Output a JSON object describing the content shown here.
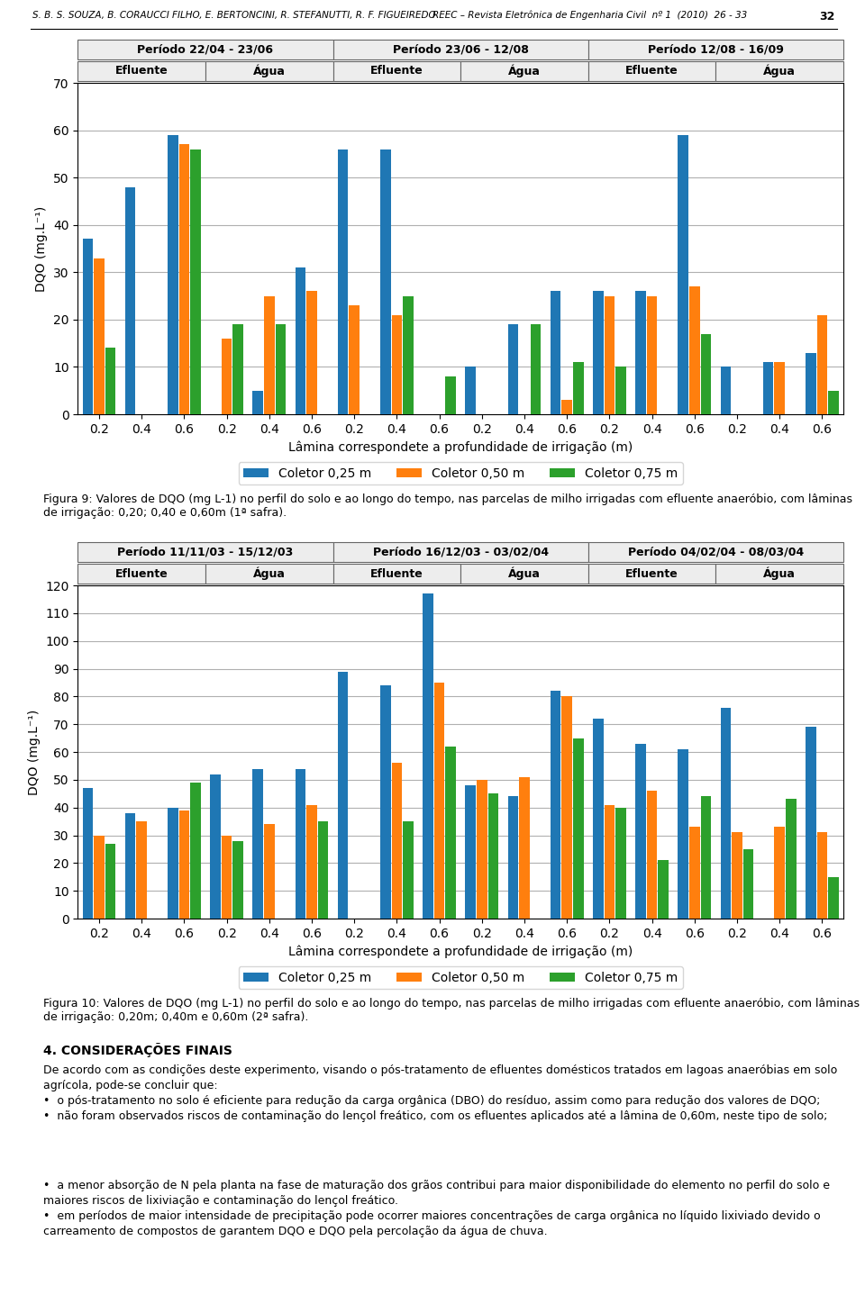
{
  "page_header": [
    "S. B. S. SOUZA, B. CORAUCCI FILHO, E. BERTONCINI, R. STEFANUTTI, R. F. FIGUEIREDO",
    "REEC – Revista Eletrônica de Engenharia Civil  nº 1  (2010)  26 - 33",
    "32"
  ],
  "chart_data": [
    {
      "type": "bar",
      "periods": [
        "Período 22/04 - 23/06",
        "Período 23/06 - 12/08",
        "Período 12/08 - 16/09"
      ],
      "subtitles": [
        "Efluente",
        "Água",
        "Efluente",
        "Água",
        "Efluente",
        "Água"
      ],
      "xlabel": "Lâmina correspondete a profundidade de irrigação (m)",
      "ylabel": "DQO (mg.L⁻¹)",
      "categories": [
        "0.2",
        "0.4",
        "0.6",
        "0.2",
        "0.4",
        "0.6",
        "0.2",
        "0.4",
        "0.6",
        "0.2",
        "0.4",
        "0.6",
        "0.2",
        "0.4",
        "0.6",
        "0.2",
        "0.4",
        "0.6"
      ],
      "series": [
        {
          "name": "Coletor 0,25 m",
          "values": [
            37,
            48,
            59,
            0,
            5,
            31,
            56,
            56,
            0,
            10,
            19,
            26,
            26,
            26,
            59,
            10,
            11,
            13
          ]
        },
        {
          "name": "Coletor 0,50 m",
          "values": [
            33,
            0,
            57,
            16,
            25,
            26,
            23,
            21,
            0,
            0,
            0,
            3,
            25,
            25,
            27,
            0,
            11,
            21
          ]
        },
        {
          "name": "Coletor 0,75 m",
          "values": [
            14,
            0,
            56,
            19,
            19,
            0,
            0,
            25,
            8,
            0,
            19,
            11,
            10,
            0,
            17,
            0,
            0,
            5
          ]
        }
      ],
      "ylim": [
        0,
        70
      ],
      "yticks": [
        0,
        10,
        20,
        30,
        40,
        50,
        60,
        70
      ],
      "grid": true,
      "legend": "upper center",
      "caption": "Figura 9: Valores de DQO (mg L-1) no perfil do solo e ao longo do tempo, nas parcelas de milho irrigadas com efluente anaeróbio, com lâminas de irrigação: 0,20; 0,40 e 0,60m (1ª safra)."
    },
    {
      "type": "bar",
      "periods": [
        "Período 11/11/03 - 15/12/03",
        "Período 16/12/03 - 03/02/04",
        "Período 04/02/04 - 08/03/04"
      ],
      "subtitles": [
        "Efluente",
        "Água",
        "Efluente",
        "Água",
        "Efluente",
        "Água"
      ],
      "xlabel": "Lâmina correspondete a profundidade de irrigação (m)",
      "ylabel": "DQO (mg.L⁻¹)",
      "categories": [
        "0.2",
        "0.4",
        "0.6",
        "0.2",
        "0.4",
        "0.6",
        "0.2",
        "0.4",
        "0.6",
        "0.2",
        "0.4",
        "0.6",
        "0.2",
        "0.4",
        "0.6",
        "0.2",
        "0.4",
        "0.6"
      ],
      "series": [
        {
          "name": "Coletor 0,25 m",
          "values": [
            47,
            38,
            40,
            52,
            54,
            54,
            89,
            84,
            117,
            48,
            44,
            82,
            72,
            63,
            61,
            76,
            0,
            69
          ]
        },
        {
          "name": "Coletor 0,50 m",
          "values": [
            30,
            35,
            39,
            30,
            34,
            41,
            0,
            56,
            85,
            50,
            51,
            80,
            41,
            46,
            33,
            31,
            33,
            31
          ]
        },
        {
          "name": "Coletor 0,75 m",
          "values": [
            27,
            0,
            49,
            28,
            0,
            35,
            0,
            35,
            62,
            45,
            0,
            65,
            40,
            21,
            44,
            25,
            43,
            15
          ]
        }
      ],
      "ylim": [
        0,
        120
      ],
      "yticks": [
        0,
        10,
        20,
        30,
        40,
        50,
        60,
        70,
        80,
        90,
        100,
        110,
        120
      ],
      "grid": true,
      "legend": "upper center",
      "caption": "Figura 10: Valores de DQO (mg L-1) no perfil do solo e ao longo do tempo, nas parcelas de milho irrigadas com efluente anaeróbio, com lâminas de irrigação: 0,20m; 0,40m e 0,60m (2ª safra)."
    }
  ],
  "section_title": "4. CONSIDERAÇÕES FINAIS",
  "paragraphs": [
    "De acordo com as condições deste experimento, visando o pós-tratamento de efluentes domésticos tratados em lagoas anaeróbias em solo agrícola, pode-se concluir que:\n•  o pós-tratamento no solo é eficiente para redução da carga orgânica (DBO) do resíduo, assim como para redução dos valores de DQO;\n•  não foram observados riscos de contaminação do lençol freático, com os efluentes aplicados até a lâmina de 0,60m, neste tipo de solo;",
    "•  a menor absorção de N pela planta na fase de maturação dos grãos contribui para maior disponibilidade do elemento no perfil do solo e maiores riscos de lixiviação e contaminação do lençol freático.\n•  em períodos de maior intensidade de precipitação pode ocorrer maiores concentrações de carga orgânica no líquido lixiviado devido o carreamento de compostos de garantem DQO e DQO pela percolação da água de chuva."
  ]
}
